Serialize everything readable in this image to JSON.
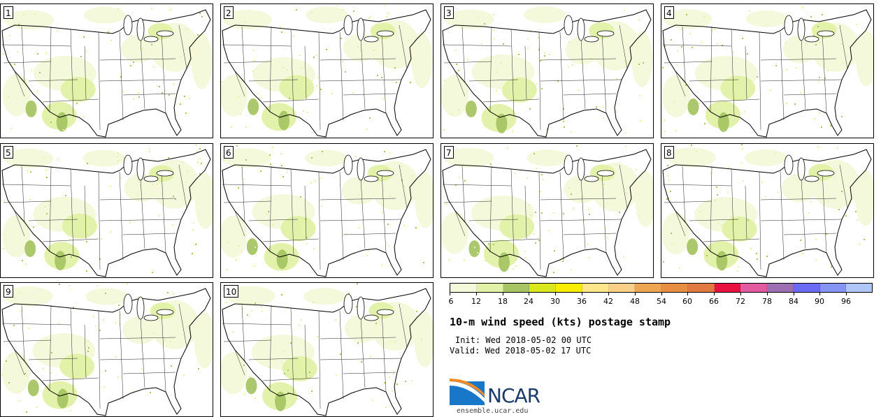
{
  "panels": [
    {
      "label": "1"
    },
    {
      "label": "2"
    },
    {
      "label": "3"
    },
    {
      "label": "4"
    },
    {
      "label": "5"
    },
    {
      "label": "6"
    },
    {
      "label": "7"
    },
    {
      "label": "8"
    },
    {
      "label": "9"
    },
    {
      "label": "10"
    }
  ],
  "colorbar": {
    "colors": [
      "#f4f9d9",
      "#e1f1a6",
      "#a8c564",
      "#d9e81d",
      "#faed05",
      "#fde58a",
      "#f8d087",
      "#eea651",
      "#e78e42",
      "#e07a41",
      "#e8113f",
      "#e45aa0",
      "#9b6fb1",
      "#6a6af4",
      "#8593f2",
      "#b0c5f8"
    ],
    "ticks": [
      "6",
      "12",
      "18",
      "24",
      "30",
      "36",
      "42",
      "48",
      "54",
      "60",
      "66",
      "72",
      "78",
      "84",
      "90",
      "96"
    ]
  },
  "title": "10-m wind speed (kts) postage stamp",
  "init": "Init: Wed 2018-05-02 00 UTC",
  "valid": "Valid: Wed 2018-05-02 17 UTC",
  "logo": {
    "text": "NCAR",
    "url_text": "ensemble.ucar.edu"
  }
}
